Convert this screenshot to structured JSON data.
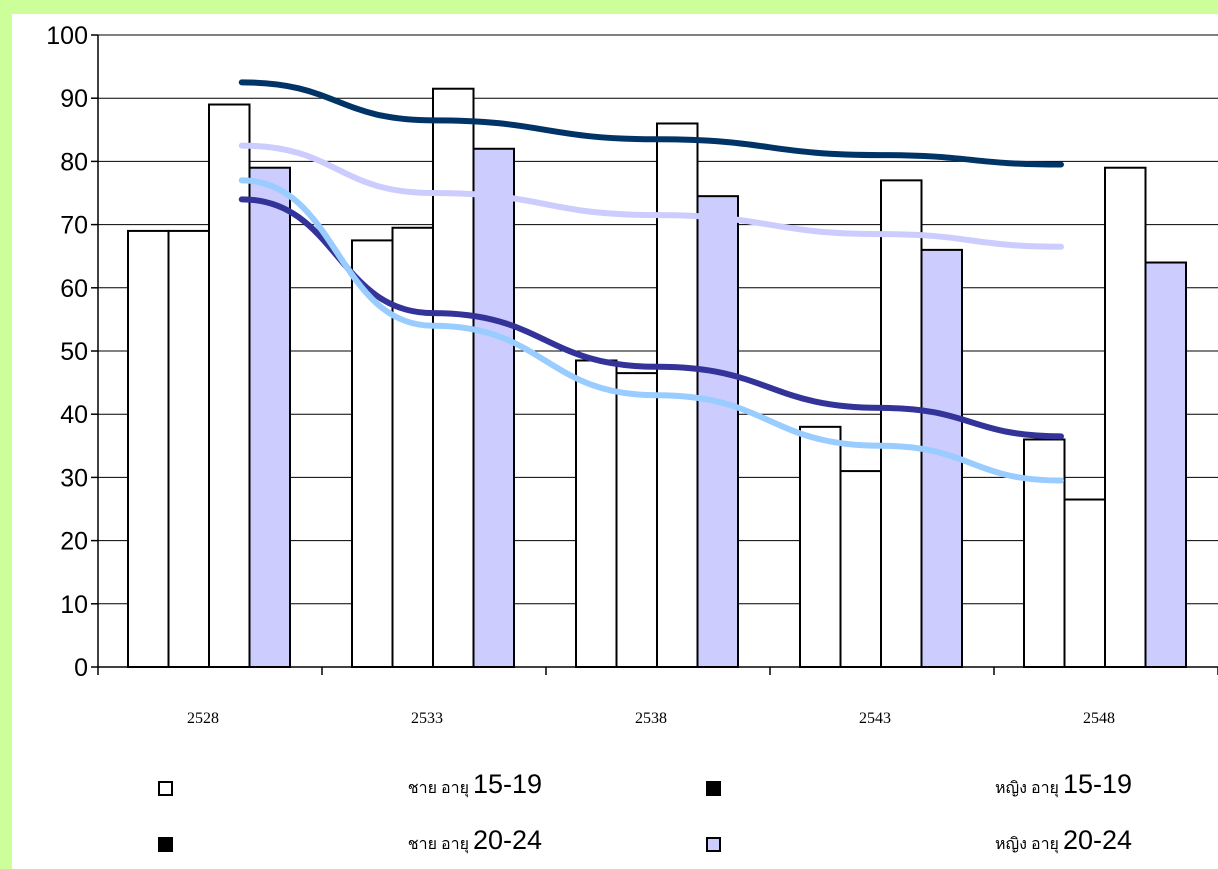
{
  "chart_data": {
    "type": "bar",
    "categories": [
      "2528",
      "2533",
      "2538",
      "2543",
      "2548"
    ],
    "ylim": [
      0,
      100
    ],
    "yticks": [
      0,
      10,
      20,
      30,
      40,
      50,
      60,
      70,
      80,
      90,
      100
    ],
    "grid": true,
    "legend_position": "bottom",
    "series": [
      {
        "name": "ชาย อายุ 15-19",
        "values": [
          69,
          67.5,
          48.5,
          38,
          36
        ],
        "fill": "#ffffff"
      },
      {
        "name": "หญิง อายุ 15-19",
        "values": [
          69,
          69.5,
          46.5,
          31,
          26.5
        ],
        "fill": "#ffffff"
      },
      {
        "name": "ชาย อายุ 20-24",
        "values": [
          89,
          91.5,
          86,
          77,
          79
        ],
        "fill": "#ffffff"
      },
      {
        "name": "หญิง อายุ 20-24",
        "values": [
          79,
          82,
          74.5,
          66,
          64
        ],
        "fill": "#ccccff"
      }
    ],
    "trendlines": [
      {
        "color": "#003366",
        "values": [
          92.5,
          86.5,
          83.5,
          81,
          79.5
        ]
      },
      {
        "color": "#ccccff",
        "values": [
          82.5,
          75,
          71.5,
          68.5,
          66.5
        ]
      },
      {
        "color": "#333399",
        "values": [
          74,
          56,
          47.5,
          41,
          36.5
        ]
      },
      {
        "color": "#99ccff",
        "values": [
          77,
          54,
          43,
          35,
          29.5
        ]
      }
    ]
  },
  "legend": [
    {
      "text": "ชาย อายุ",
      "num": "15-19",
      "swatch": "#ffffff"
    },
    {
      "text": "หญิง อายุ",
      "num": "15-19",
      "swatch": "#000000"
    },
    {
      "text": "ชาย อายุ",
      "num": "20-24",
      "swatch": "#000000"
    },
    {
      "text": "หญิง อายุ",
      "num": "20-24",
      "swatch": "#ccccff"
    }
  ]
}
